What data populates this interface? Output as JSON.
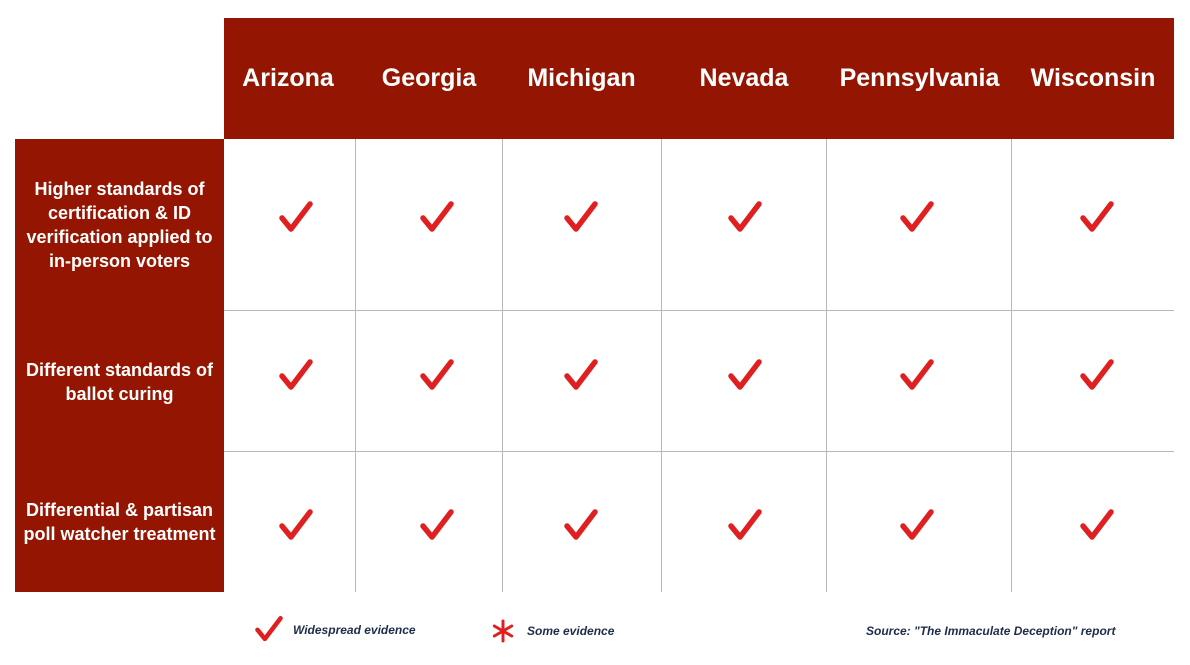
{
  "table": {
    "columns": [
      "Arizona",
      "Georgia",
      "Michigan",
      "Nevada",
      "Pennsylvania",
      "Wisconsin"
    ],
    "rows": [
      {
        "label": "Higher standards of certification & ID verification applied to in-person voters",
        "marks": [
          "check",
          "check",
          "check",
          "check",
          "check",
          "check"
        ]
      },
      {
        "label": "Different standards of ballot curing",
        "marks": [
          "check",
          "check",
          "check",
          "check",
          "check",
          "check"
        ]
      },
      {
        "label": "Differential & partisan poll watcher treatment",
        "marks": [
          "check",
          "check",
          "check",
          "check",
          "check",
          "check"
        ]
      }
    ]
  },
  "legend": {
    "widespread": {
      "label": "Widespread evidence",
      "icon": "check-icon"
    },
    "some": {
      "label": "Some evidence",
      "icon": "asterisk-icon"
    }
  },
  "source": "Source: \"The Immaculate Deception\" report",
  "colors": {
    "header_bg": "#941602",
    "mark": "#e02020",
    "grid": "#b8b8b8",
    "note_text": "#1f2d4a"
  }
}
